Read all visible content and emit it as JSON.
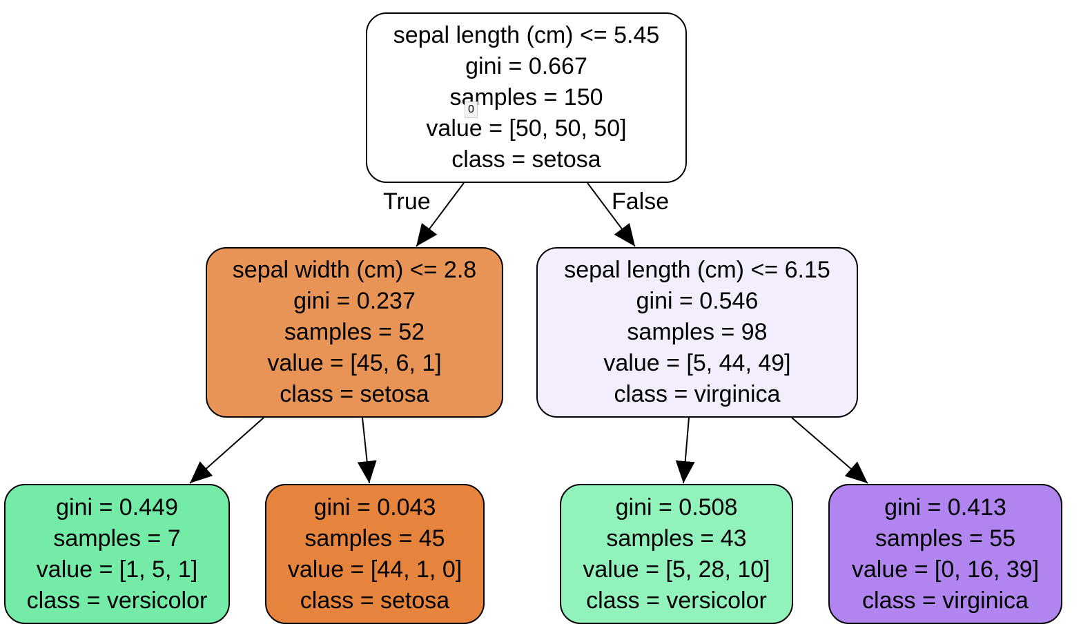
{
  "tree": {
    "nodes": [
      {
        "id": "0",
        "split": "sepal length (cm) <= 5.45",
        "gini": "gini = 0.667",
        "samples": "samples = 150",
        "value": "value = [50, 50, 50]",
        "class": "class = setosa",
        "fill": "#ffffff",
        "badge": "0"
      },
      {
        "id": "1",
        "split": "sepal width (cm) <= 2.8",
        "gini": "gini = 0.237",
        "samples": "samples = 52",
        "value": "value = [45, 6, 1]",
        "class": "class = setosa",
        "fill": "#e89456"
      },
      {
        "id": "2",
        "split": "sepal length (cm) <= 6.15",
        "gini": "gini = 0.546",
        "samples": "samples = 98",
        "value": "value = [5, 44, 49]",
        "class": "class = virginica",
        "fill": "#f3edfd"
      },
      {
        "id": "3",
        "gini": "gini = 0.449",
        "samples": "samples = 7",
        "value": "value = [1, 5, 1]",
        "class": "class = versicolor",
        "fill": "#74eba7"
      },
      {
        "id": "4",
        "gini": "gini = 0.043",
        "samples": "samples = 45",
        "value": "value = [44, 1, 0]",
        "class": "class = setosa",
        "fill": "#e6843d"
      },
      {
        "id": "5",
        "gini": "gini = 0.508",
        "samples": "samples = 43",
        "value": "value = [5, 28, 10]",
        "class": "class = versicolor",
        "fill": "#91f2bb"
      },
      {
        "id": "6",
        "gini": "gini = 0.413",
        "samples": "samples = 55",
        "value": "value = [0, 16, 39]",
        "class": "class = virginica",
        "fill": "#b085ef"
      }
    ],
    "edges": [
      {
        "from": "0",
        "to": "1",
        "label": "True"
      },
      {
        "from": "0",
        "to": "2",
        "label": "False"
      },
      {
        "from": "1",
        "to": "3"
      },
      {
        "from": "1",
        "to": "4"
      },
      {
        "from": "2",
        "to": "5"
      },
      {
        "from": "2",
        "to": "6"
      }
    ]
  }
}
